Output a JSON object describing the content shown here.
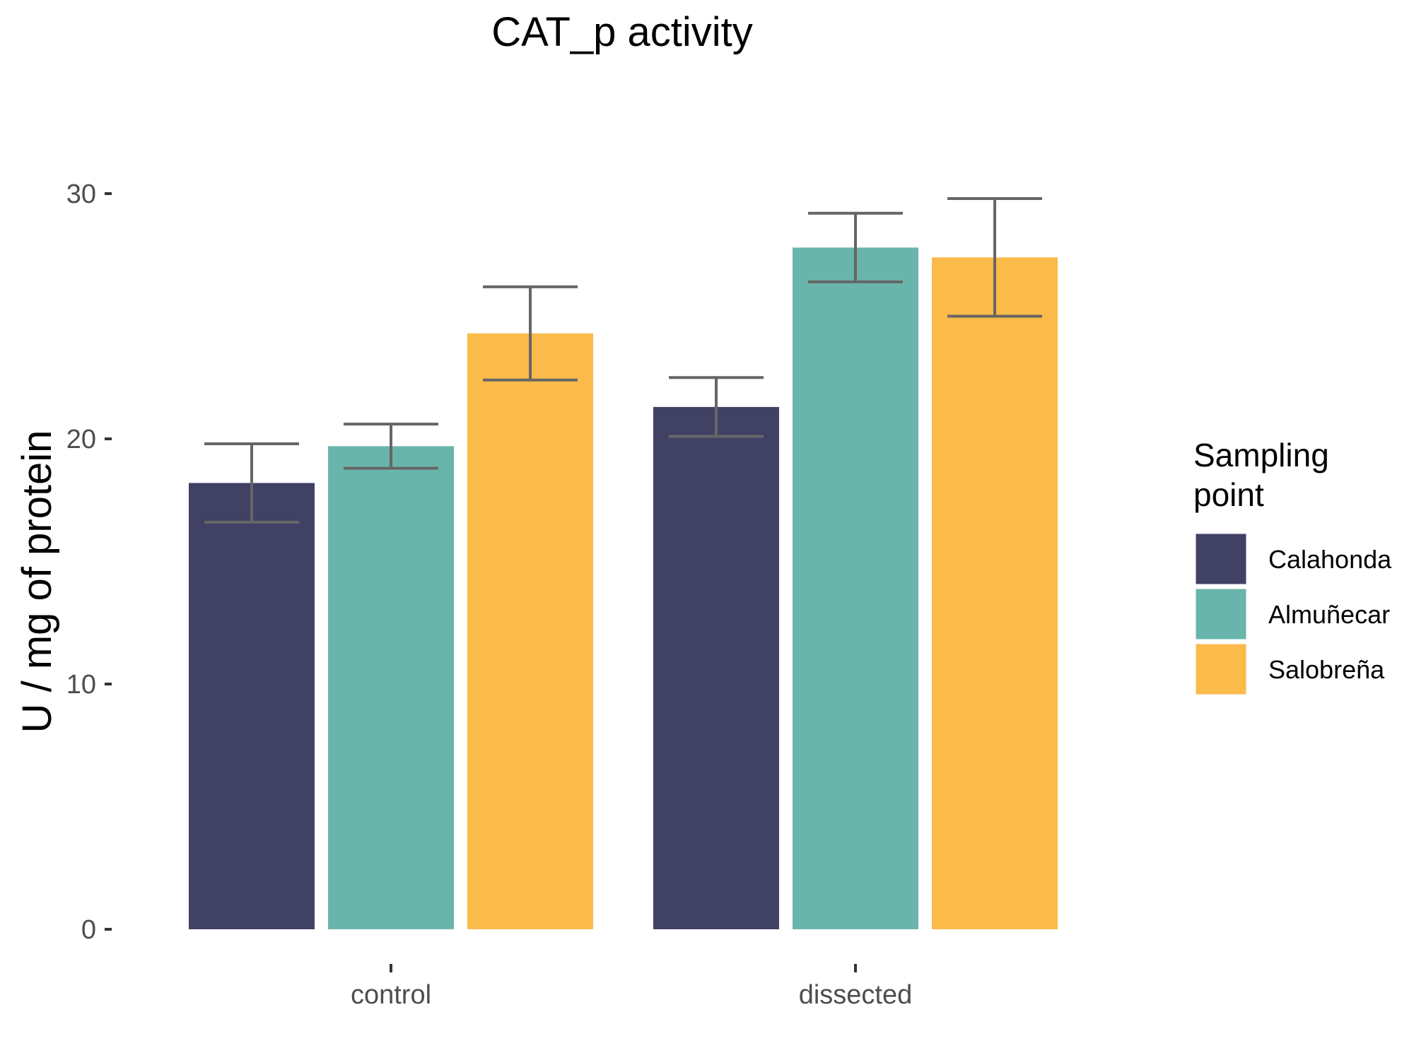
{
  "chart_data": {
    "type": "bar",
    "title": "CAT_p activity",
    "ylabel": "U / mg  of protein",
    "xlabel": "",
    "categories": [
      "control",
      "dissected"
    ],
    "ylim": [
      0,
      32
    ],
    "yticks": [
      0,
      10,
      20,
      30
    ],
    "grid": false,
    "legend_title_lines": [
      "Sampling",
      "point"
    ],
    "legend_position": "right",
    "series": [
      {
        "name": "Calahonda",
        "color": "#414166",
        "values": [
          18.2,
          21.3
        ],
        "errors": [
          1.6,
          1.2
        ]
      },
      {
        "name": "Almuñecar",
        "color": "#6ab5ab",
        "values": [
          19.7,
          27.8
        ],
        "errors": [
          0.9,
          1.4
        ]
      },
      {
        "name": "Salobreña",
        "color": "#fabb4b",
        "values": [
          24.3,
          27.4
        ],
        "errors": [
          1.9,
          2.4
        ]
      }
    ],
    "error_bar_color": "#666666",
    "axis_tick_color": "#333333"
  }
}
